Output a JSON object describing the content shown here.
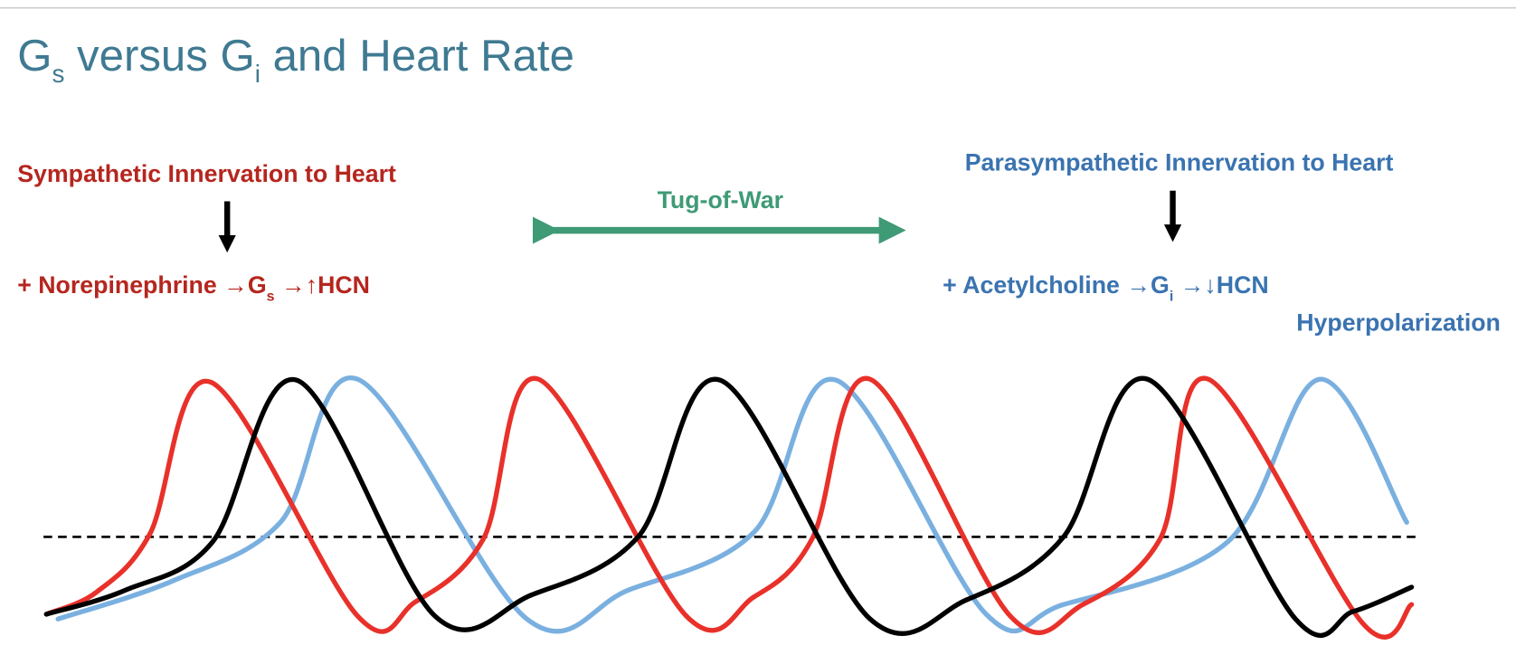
{
  "title": {
    "letter1": "G",
    "sub1": "s",
    "middle": " versus G",
    "sub2": "i",
    "rest": " and Heart Rate"
  },
  "left": {
    "heading": "Sympathetic Innervation to Heart",
    "line_start": "+ Norepinephrine →G",
    "line_sub": "s",
    "line_end": " →↑HCN"
  },
  "center": {
    "label": "Tug-of-War"
  },
  "right": {
    "heading": "Parasympathetic Innervation to Heart",
    "line_start": "+ Acetylcholine →G",
    "line_sub": "i",
    "line_end": " →↓HCN",
    "note": "Hyperpolarization"
  }
}
